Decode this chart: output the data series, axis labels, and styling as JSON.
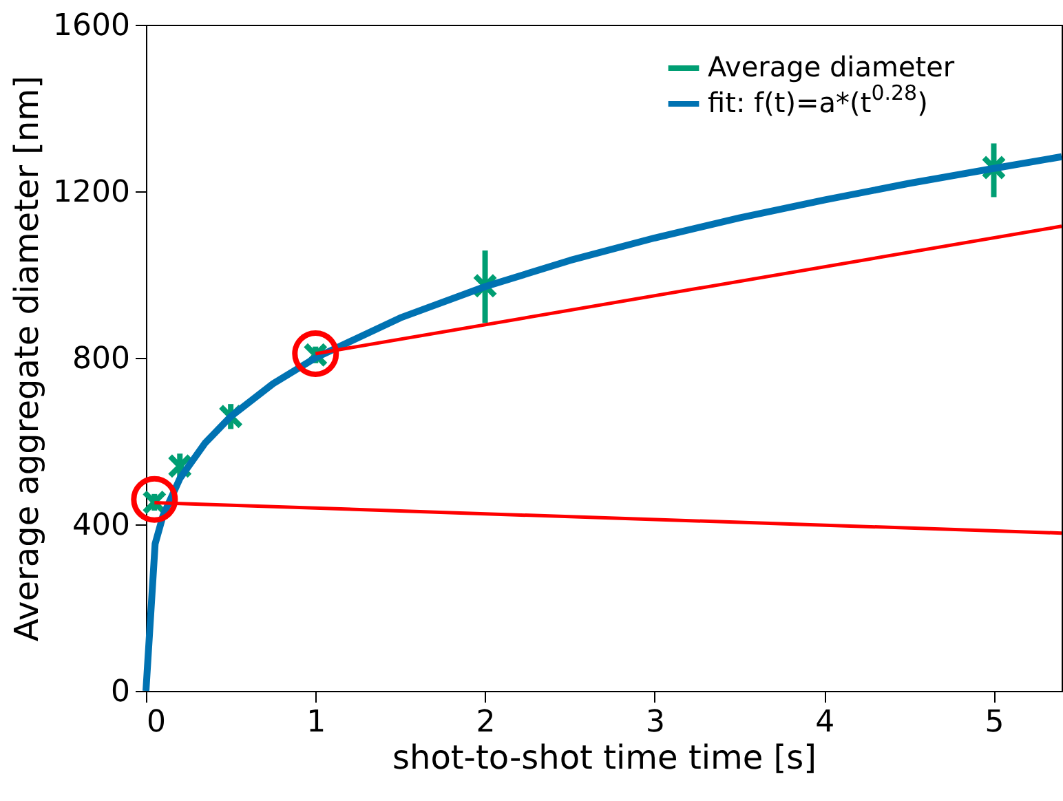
{
  "chart_data": {
    "type": "scatter",
    "xlabel": "shot-to-shot time time [s]",
    "ylabel": "Average aggregate diameter [nm]",
    "xlim": [
      0,
      5.4
    ],
    "ylim": [
      0,
      1600
    ],
    "xticks": [
      0,
      1,
      2,
      3,
      4,
      5
    ],
    "yticks": [
      0,
      400,
      800,
      1200,
      1600
    ],
    "grid": false,
    "legend": "top right",
    "series": [
      {
        "name": "Average diameter",
        "marker": "cross",
        "color": "#009e73",
        "x": [
          0.05,
          0.2,
          0.5,
          1,
          2,
          5
        ],
        "values": [
          453,
          540,
          659,
          807,
          973,
          1257
        ],
        "errors": [
          20,
          30,
          30,
          20,
          [
            884,
            1058
          ],
          [
            1186,
            1315
          ]
        ]
      },
      {
        "name": "fit: f(t)=a*(t$^{0.28}$)",
        "type": "line",
        "color": "#0072b2",
        "x": [
          0,
          0.054,
          0.1,
          0.2,
          0.35,
          0.5,
          0.75,
          1,
          1.5,
          2,
          2.5,
          3,
          3.5,
          4,
          4.5,
          5,
          5.4
        ],
        "values": [
          0,
          353,
          420,
          510,
          596,
          659,
          738,
          800,
          896,
          971,
          1034,
          1088,
          1136,
          1179,
          1219,
          1255,
          1283
        ]
      },
      {
        "type": "line",
        "color": "#ff0000",
        "x": [
          0.05,
          5.4
        ],
        "values": [
          452,
          379
        ]
      },
      {
        "type": "line",
        "color": "#ff0000",
        "x": [
          1,
          5.4
        ],
        "values": [
          810,
          1116
        ]
      },
      {
        "marker": "circle",
        "color": "#ff0000",
        "x": [
          0.05,
          1
        ],
        "values": [
          460,
          810
        ]
      }
    ]
  }
}
